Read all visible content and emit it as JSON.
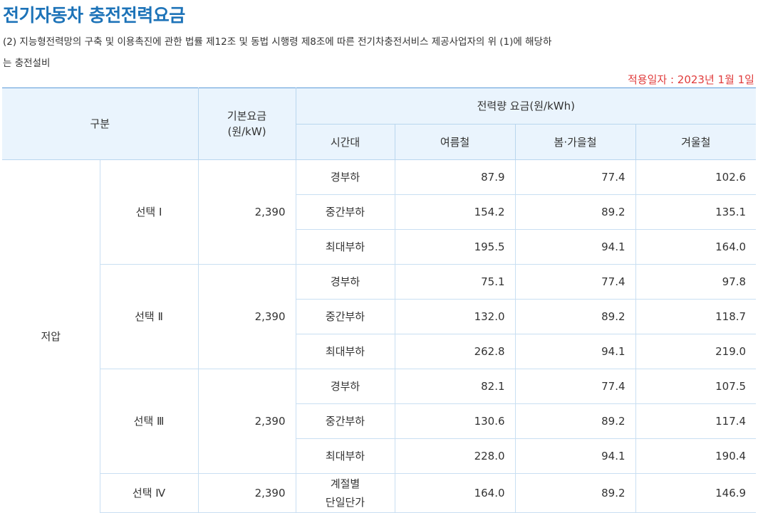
{
  "page_title": "전기자동차 충전전력요금",
  "description": {
    "line1": "(2) 지능형전력망의 구축 및 이용촉진에 관한 법률 제12조 및 동법 시행령 제8조에 따른 전기차충전서비스 제공사업자의 위 (1)에 해당하",
    "line2": "는 충전설비"
  },
  "effective_date": "적용일자 : 2023년 1월 1일",
  "table": {
    "headers": {
      "category": "구분",
      "base_rate_line1": "기본요금",
      "base_rate_line2": "(원/kW)",
      "energy_rate": "전력량 요금(원/kWh)",
      "time_band": "시간대",
      "summer": "여름철",
      "spring_fall": "봄·가을철",
      "winter": "겨울철"
    },
    "voltage": "저압",
    "options": [
      {
        "label": "선택 Ⅰ",
        "base_rate": "2,390",
        "rows": [
          {
            "time": "경부하",
            "summer": "87.9",
            "spring_fall": "77.4",
            "winter": "102.6"
          },
          {
            "time": "중간부하",
            "summer": "154.2",
            "spring_fall": "89.2",
            "winter": "135.1"
          },
          {
            "time": "최대부하",
            "summer": "195.5",
            "spring_fall": "94.1",
            "winter": "164.0"
          }
        ]
      },
      {
        "label": "선택 Ⅱ",
        "base_rate": "2,390",
        "rows": [
          {
            "time": "경부하",
            "summer": "75.1",
            "spring_fall": "77.4",
            "winter": "97.8"
          },
          {
            "time": "중간부하",
            "summer": "132.0",
            "spring_fall": "89.2",
            "winter": "118.7"
          },
          {
            "time": "최대부하",
            "summer": "262.8",
            "spring_fall": "94.1",
            "winter": "219.0"
          }
        ]
      },
      {
        "label": "선택 Ⅲ",
        "base_rate": "2,390",
        "rows": [
          {
            "time": "경부하",
            "summer": "82.1",
            "spring_fall": "77.4",
            "winter": "107.5"
          },
          {
            "time": "중간부하",
            "summer": "130.6",
            "spring_fall": "89.2",
            "winter": "117.4"
          },
          {
            "time": "최대부하",
            "summer": "228.0",
            "spring_fall": "94.1",
            "winter": "190.4"
          }
        ]
      },
      {
        "label": "선택 Ⅳ",
        "base_rate": "2,390",
        "rows": [
          {
            "time_line1": "계절별",
            "time_line2": "단일단가",
            "summer": "164.0",
            "spring_fall": "89.2",
            "winter": "146.9"
          }
        ]
      }
    ]
  }
}
